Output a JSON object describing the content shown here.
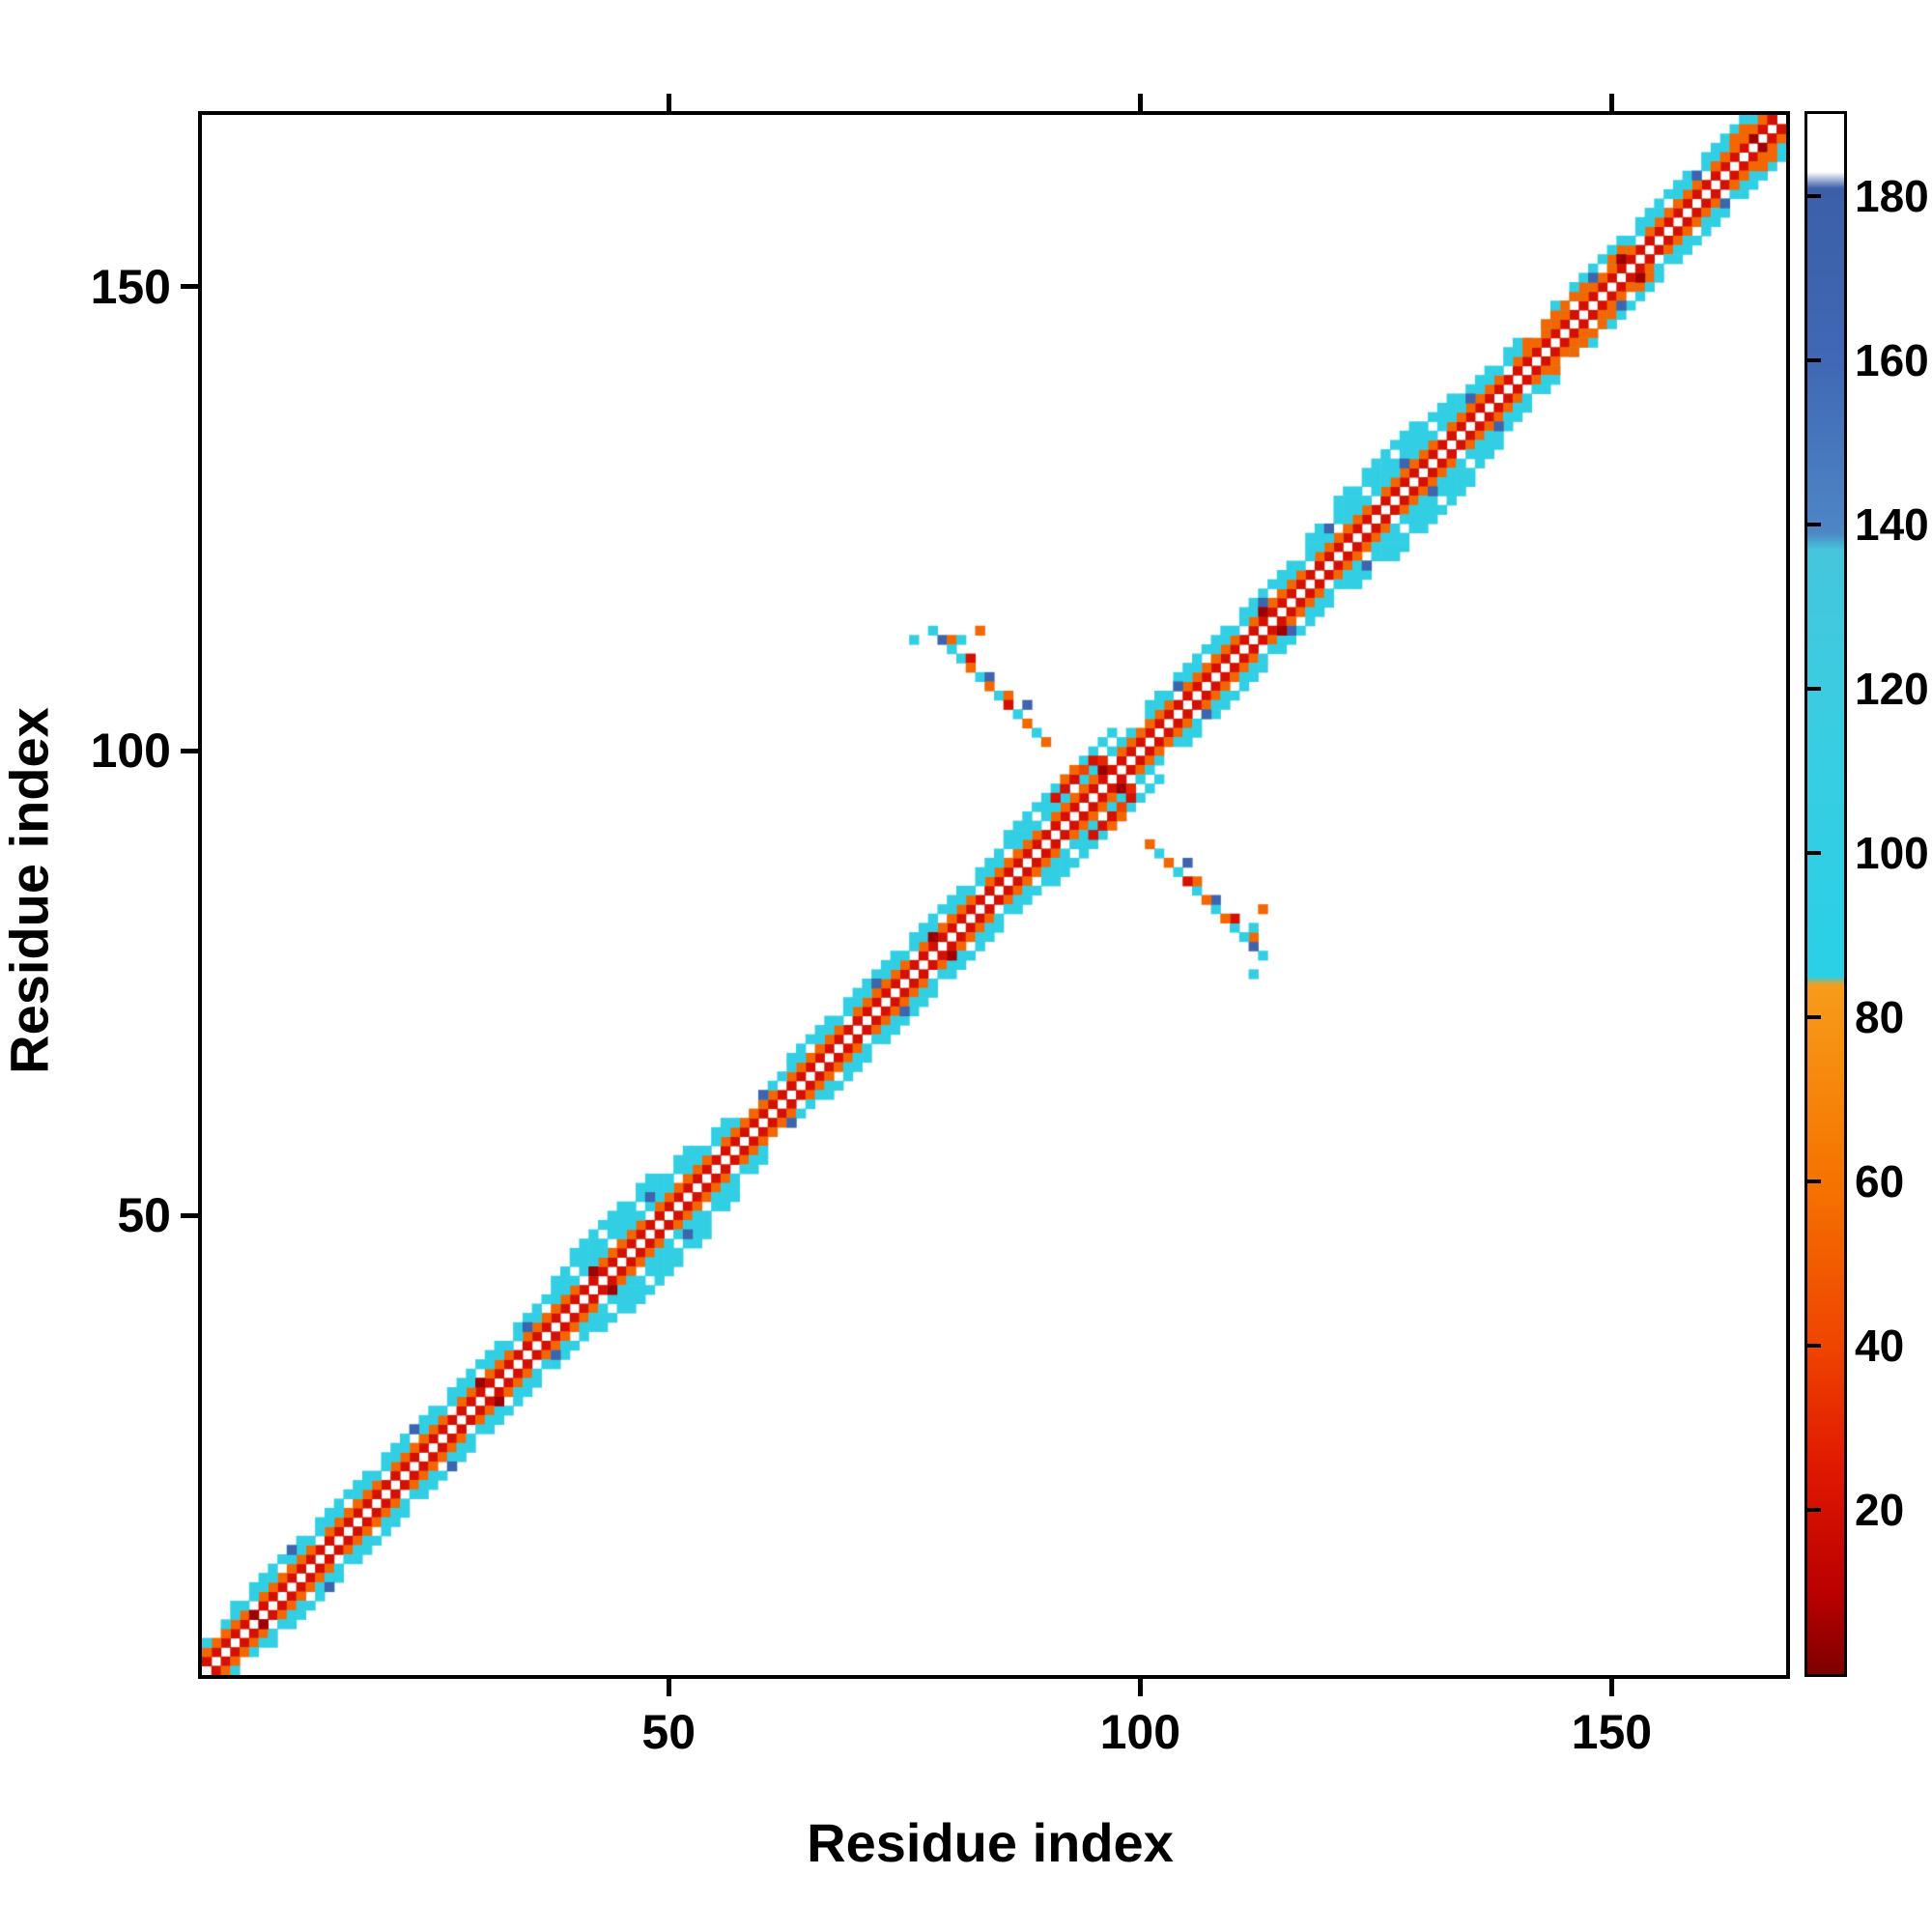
{
  "figure": {
    "background": "#ffffff",
    "axis_color": "#000000"
  },
  "chart_data": {
    "type": "heatmap",
    "title": "",
    "xlabel": "Residue index",
    "ylabel": "Residue index",
    "x_range": [
      1,
      168
    ],
    "y_range": [
      1,
      168
    ],
    "x_ticks": [
      50,
      100,
      150
    ],
    "y_ticks": [
      50,
      100,
      150
    ],
    "grid": false,
    "legend": "none",
    "colorbar": {
      "position": "right",
      "vmin": 0,
      "vmax": 190,
      "ticks": [
        20,
        40,
        60,
        80,
        100,
        120,
        140,
        160,
        180
      ],
      "stops": [
        [
          0,
          "#7e0000"
        ],
        [
          10,
          "#bb0000"
        ],
        [
          25,
          "#e01800"
        ],
        [
          40,
          "#ef4400"
        ],
        [
          60,
          "#f57300"
        ],
        [
          84,
          "#f79c1a"
        ],
        [
          85,
          "#2ad0e6"
        ],
        [
          115,
          "#39cde2"
        ],
        [
          137,
          "#45c6dd"
        ],
        [
          139,
          "#4e86c6"
        ],
        [
          160,
          "#4068b4"
        ],
        [
          181,
          "#3c5fa8"
        ],
        [
          183,
          "#ffffff"
        ],
        [
          190,
          "#ffffff"
        ]
      ]
    },
    "matrix": {
      "n": 168,
      "symmetric": true,
      "antidiagonal_gap_mod": 7,
      "bands": [
        {
          "offset": 1,
          "value": 20,
          "gap": false,
          "ranges": [
            [
              1,
              167
            ]
          ]
        },
        {
          "offset": 2,
          "value": 55,
          "gap": true,
          "ranges": [
            [
              1,
              166
            ]
          ]
        },
        {
          "offset": 3,
          "value": 100,
          "gap": true,
          "ranges": [
            [
              1,
              57
            ],
            [
              60,
              165
            ]
          ]
        },
        {
          "offset": 3,
          "value": 55,
          "gap": true,
          "ranges": [
            [
              141,
              151
            ]
          ]
        },
        {
          "offset": 4,
          "value": 100,
          "gap": true,
          "ranges": [
            [
              4,
              56
            ],
            [
              63,
              95
            ],
            [
              101,
              140
            ],
            [
              144,
              164
            ]
          ]
        },
        {
          "offset": 5,
          "value": 100,
          "gap": true,
          "ranges": [
            [
              38,
              52
            ],
            [
              86,
              97
            ],
            [
              118,
              133
            ]
          ]
        },
        {
          "offset": 6,
          "value": 100,
          "gap": true,
          "ranges": [
            [
              40,
              48
            ],
            [
              121,
              130
            ]
          ]
        }
      ],
      "cells": [
        [
          76,
          112,
          100
        ],
        [
          78,
          113,
          100
        ],
        [
          79,
          112,
          170
        ],
        [
          80,
          112,
          55
        ],
        [
          80,
          111,
          100
        ],
        [
          81,
          112,
          100
        ],
        [
          81,
          110,
          100
        ],
        [
          82,
          110,
          20
        ],
        [
          82,
          109,
          55
        ],
        [
          83,
          113,
          55
        ],
        [
          83,
          108,
          100
        ],
        [
          84,
          108,
          170
        ],
        [
          84,
          107,
          55
        ],
        [
          85,
          106,
          100
        ],
        [
          86,
          106,
          55
        ],
        [
          86,
          105,
          20
        ],
        [
          87,
          104,
          100
        ],
        [
          88,
          105,
          170
        ],
        [
          88,
          103,
          55
        ],
        [
          89,
          102,
          100
        ],
        [
          90,
          101,
          55
        ],
        [
          10,
          14,
          170
        ],
        [
          23,
          27,
          170
        ],
        [
          35,
          38,
          170
        ],
        [
          48,
          52,
          170
        ],
        [
          60,
          63,
          170
        ],
        [
          72,
          75,
          170
        ],
        [
          104,
          107,
          170
        ],
        [
          113,
          116,
          170
        ],
        [
          120,
          124,
          170
        ],
        [
          128,
          131,
          170
        ],
        [
          135,
          138,
          170
        ],
        [
          148,
          151,
          170
        ],
        [
          159,
          162,
          170
        ],
        [
          6,
          7,
          5
        ],
        [
          30,
          32,
          5
        ],
        [
          42,
          44,
          5
        ],
        [
          78,
          80,
          5
        ],
        [
          96,
          98,
          5
        ],
        [
          113,
          115,
          5
        ],
        [
          151,
          153,
          5
        ],
        [
          165,
          166,
          5
        ],
        [
          91,
          95,
          20
        ],
        [
          92,
          96,
          20
        ],
        [
          92,
          97,
          55
        ],
        [
          93,
          97,
          20
        ],
        [
          93,
          98,
          55
        ],
        [
          94,
          98,
          40
        ],
        [
          95,
          99,
          20
        ],
        [
          96,
          99,
          30
        ],
        [
          161,
          163,
          55
        ],
        [
          162,
          164,
          55
        ],
        [
          163,
          165,
          55
        ],
        [
          163,
          166,
          55
        ],
        [
          164,
          166,
          55
        ],
        [
          164,
          167,
          55
        ],
        [
          165,
          167,
          55
        ],
        [
          166,
          167,
          20
        ],
        [
          166,
          168,
          55
        ],
        [
          167,
          168,
          20
        ]
      ]
    }
  },
  "layout_note": "protein residue-residue contact map with colorbar"
}
